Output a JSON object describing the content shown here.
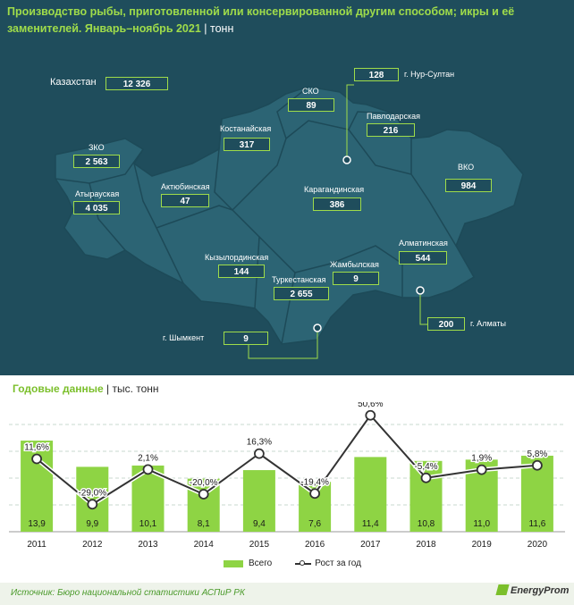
{
  "header": {
    "title": "Производство рыбы, приготовленной или консервированной другим способом; икры и её заменителей. Январь–ноябрь 2021",
    "unit": "тонн"
  },
  "map": {
    "total": {
      "label": "Казахстан",
      "value": "12 326"
    },
    "regions": [
      {
        "name": "ЗКО",
        "value": "2 563"
      },
      {
        "name": "Атырауская",
        "value": "4 035"
      },
      {
        "name": "Актюбинская",
        "value": "47"
      },
      {
        "name": "Костанайская",
        "value": "317"
      },
      {
        "name": "СКО",
        "value": "89"
      },
      {
        "name": "Павлодарская",
        "value": "216"
      },
      {
        "name": "ВКО",
        "value": "984"
      },
      {
        "name": "Карагандинская",
        "value": "386"
      },
      {
        "name": "Кызылординская",
        "value": "144"
      },
      {
        "name": "Туркестанская",
        "value": "2 655"
      },
      {
        "name": "Жамбылская",
        "value": "9"
      },
      {
        "name": "Алматинская",
        "value": "544"
      },
      {
        "name": "г. Нур-Султан",
        "value": "128"
      },
      {
        "name": "г. Алматы",
        "value": "200"
      },
      {
        "name": "г. Шымкент",
        "value": "9"
      }
    ]
  },
  "annual": {
    "title": "Годовые данные",
    "unit": "тыс. тонн"
  },
  "chart_data": {
    "type": "bar",
    "title": "Годовые данные",
    "ylabel": "тыс. тонн",
    "categories": [
      "2011",
      "2012",
      "2013",
      "2014",
      "2015",
      "2016",
      "2017",
      "2018",
      "2019",
      "2020"
    ],
    "series": [
      {
        "name": "Всего",
        "type": "bar",
        "values": [
          13.9,
          9.9,
          10.1,
          8.1,
          9.4,
          7.6,
          11.4,
          10.8,
          11.0,
          11.6
        ],
        "labels": [
          "13,9",
          "9,9",
          "10,1",
          "8,1",
          "9,4",
          "7,6",
          "11,4",
          "10,8",
          "11,0",
          "11,6"
        ]
      },
      {
        "name": "Рост за год",
        "type": "line",
        "values": [
          11.6,
          -29.0,
          2.1,
          -20.0,
          16.3,
          -19.4,
          50.6,
          -5.4,
          1.9,
          5.8
        ],
        "labels": [
          "11,6%",
          "-29,0%",
          "2,1%",
          "-20,0%",
          "16,3%",
          "-19,4%",
          "50,6%",
          "-5,4%",
          "1,9%",
          "5,8%"
        ]
      }
    ],
    "legend": [
      "Всего",
      "Рост за год"
    ],
    "legend_position": "bottom"
  },
  "footer": {
    "source": "Источник: Бюро национальной статистики АСПиР РК",
    "brand": "EnergyProm"
  },
  "colors": {
    "bar": "#8ed444",
    "accent": "#9fdc4a",
    "bg": "#1f4d5c",
    "map": "#2c6474",
    "line": "#333333"
  }
}
